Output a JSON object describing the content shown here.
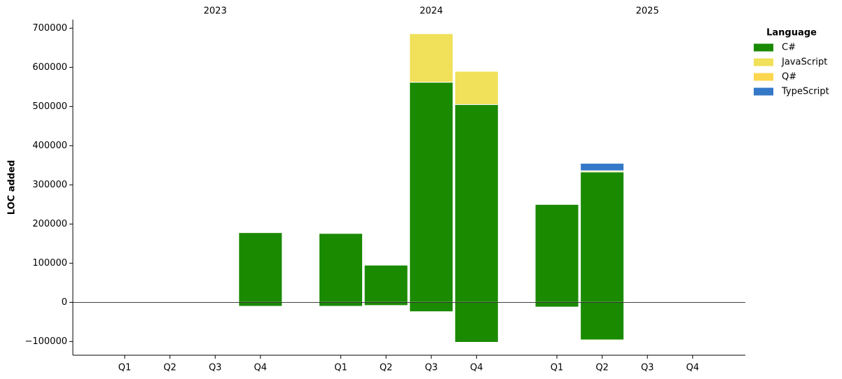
{
  "chart_data": {
    "type": "bar",
    "stacked": true,
    "y_label": "LOC added",
    "groups": [
      "2023",
      "2024",
      "2025"
    ],
    "categories": [
      "Q1",
      "Q2",
      "Q3",
      "Q4",
      "Q1",
      "Q2",
      "Q3",
      "Q4",
      "Q1",
      "Q2",
      "Q3",
      "Q4"
    ],
    "ylim": [
      -135000,
      722000
    ],
    "yticks": [
      {
        "value": -100000,
        "label": "−100000"
      },
      0,
      100000,
      200000,
      300000,
      400000,
      500000,
      600000,
      700000
    ],
    "zero_line": true,
    "legend_title": "Language",
    "legend": "outside-upper-right",
    "series": [
      {
        "name": "C#",
        "color": "#1a8a00",
        "values": [
          null,
          null,
          null,
          178000,
          176000,
          95000,
          562000,
          505000,
          250000,
          333000,
          null,
          null
        ],
        "negative_values": [
          null,
          null,
          null,
          -10000,
          -10000,
          -8000,
          -24000,
          -102000,
          -12000,
          -96000,
          null,
          null
        ]
      },
      {
        "name": "JavaScript",
        "color": "#f0e05a",
        "values": [
          null,
          null,
          null,
          null,
          null,
          null,
          124000,
          85000,
          null,
          3000,
          null,
          null
        ],
        "negative_values": [
          null,
          null,
          null,
          null,
          null,
          null,
          -2000,
          null,
          null,
          -2000,
          null,
          null
        ]
      },
      {
        "name": "Q#",
        "color": "#fcd64f",
        "values": [
          null,
          null,
          null,
          null,
          null,
          null,
          null,
          null,
          null,
          null,
          null,
          null
        ],
        "negative_values": [
          null,
          null,
          null,
          null,
          null,
          null,
          null,
          null,
          null,
          null,
          null,
          null
        ]
      },
      {
        "name": "TypeScript",
        "color": "#3578c8",
        "values": [
          null,
          null,
          null,
          null,
          null,
          null,
          null,
          null,
          null,
          19000,
          null,
          null
        ],
        "negative_values": [
          null,
          null,
          null,
          null,
          null,
          null,
          null,
          null,
          null,
          null,
          null,
          null
        ]
      }
    ]
  }
}
